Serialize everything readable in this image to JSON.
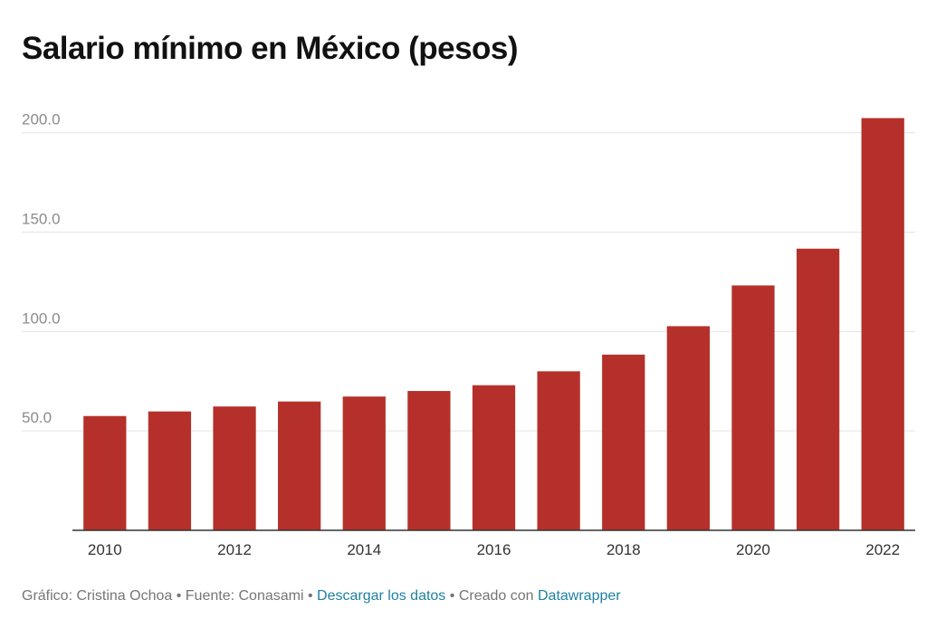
{
  "chart_data": {
    "type": "bar",
    "title": "Salario mínimo en México (pesos)",
    "categories": [
      "2010",
      "2011",
      "2012",
      "2013",
      "2014",
      "2015",
      "2016",
      "2017",
      "2018",
      "2019",
      "2020",
      "2021",
      "2022"
    ],
    "values": [
      57.5,
      59.8,
      62.3,
      64.8,
      67.3,
      70.1,
      73.0,
      80.0,
      88.4,
      102.7,
      123.2,
      141.7,
      207.4
    ],
    "x_tick_labels": [
      "2010",
      "2012",
      "2014",
      "2016",
      "2018",
      "2020",
      "2022"
    ],
    "y_tick_labels": [
      "50.0",
      "100.0",
      "150.0",
      "200.0"
    ],
    "y_ticks": [
      50,
      100,
      150,
      200
    ],
    "ylim": [
      0,
      214
    ],
    "bar_color": "#b5302a",
    "grid": true
  },
  "footer": {
    "author": "Gráfico: Cristina Ochoa",
    "sep1": " • ",
    "source": "Fuente: Conasami",
    "sep2": " • ",
    "download_link": "Descargar los datos",
    "sep3": " • ",
    "created_with": "Creado con ",
    "datawrapper_link": "Datawrapper"
  }
}
